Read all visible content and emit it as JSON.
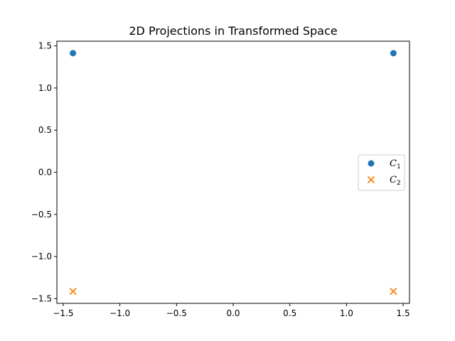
{
  "chart_data": {
    "type": "scatter",
    "title": "2D Projections in Transformed Space",
    "xlabel": "",
    "ylabel": "",
    "xlim": [
      -1.556,
      1.556
    ],
    "ylim": [
      -1.556,
      1.556
    ],
    "xticks": [
      -1.5,
      -1.0,
      -0.5,
      0.0,
      0.5,
      1.0,
      1.5
    ],
    "yticks": [
      -1.5,
      -1.0,
      -0.5,
      0.0,
      0.5,
      1.0,
      1.5
    ],
    "xtick_labels": [
      "−1.5",
      "−1.0",
      "−0.5",
      "0.0",
      "0.5",
      "1.0",
      "1.5"
    ],
    "ytick_labels": [
      "−1.5",
      "−1.0",
      "−0.5",
      "0.0",
      "0.5",
      "1.0",
      "1.5"
    ],
    "grid": false,
    "legend_position": "center-right",
    "series": [
      {
        "name": "C1",
        "label_main": "C",
        "label_sub": "1",
        "marker": "circle",
        "color": "#1f77b4",
        "points": [
          [
            -1.414,
            1.414
          ],
          [
            1.414,
            1.414
          ]
        ]
      },
      {
        "name": "C2",
        "label_main": "C",
        "label_sub": "2",
        "marker": "x",
        "color": "#ff7f0e",
        "points": [
          [
            -1.414,
            -1.414
          ],
          [
            1.414,
            -1.414
          ]
        ]
      }
    ]
  }
}
